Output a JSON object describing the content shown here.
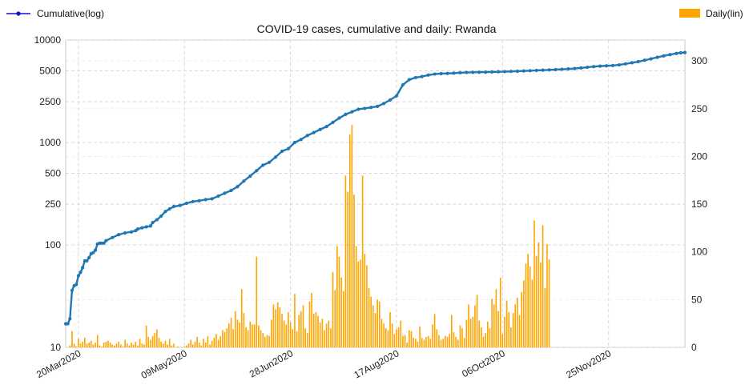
{
  "chart_data": {
    "type": "bar+line",
    "title": "COVID-19 cases, cumulative and daily: Rwanda",
    "legend": {
      "left": "Cumulative(log)",
      "right": "Daily(lin)",
      "placement": "top corners"
    },
    "colors": {
      "cumulative": "#1f77b4",
      "daily": "#ffa500",
      "grid": "#d9d9d9"
    },
    "x_axis": {
      "type": "date",
      "range": [
        "2020-03-14",
        "2020-12-31"
      ],
      "ticks": [
        {
          "date": "2020-03-20",
          "label": "20Mar2020"
        },
        {
          "date": "2020-05-09",
          "label": "09May2020"
        },
        {
          "date": "2020-06-28",
          "label": "28Jun2020"
        },
        {
          "date": "2020-08-17",
          "label": "17Aug2020"
        },
        {
          "date": "2020-10-06",
          "label": "06Oct2020"
        },
        {
          "date": "2020-11-25",
          "label": "25Nov2020"
        }
      ]
    },
    "y_left": {
      "scale": "log",
      "range": [
        10,
        10000
      ],
      "ticks": [
        10,
        100,
        250,
        500,
        1000,
        2500,
        5000,
        10000
      ]
    },
    "y_right": {
      "scale": "linear",
      "range": [
        0,
        322
      ],
      "ticks": [
        0,
        50,
        100,
        150,
        200,
        250,
        300
      ]
    },
    "grid": true,
    "series": [
      {
        "name": "Cumulative(log)",
        "axis": "left",
        "style": "line-with-dots",
        "points": [
          [
            "2020-03-14",
            17
          ],
          [
            "2020-03-15",
            17
          ],
          [
            "2020-03-16",
            19
          ],
          [
            "2020-03-17",
            36
          ],
          [
            "2020-03-18",
            40
          ],
          [
            "2020-03-19",
            41
          ],
          [
            "2020-03-20",
            50
          ],
          [
            "2020-03-21",
            54
          ],
          [
            "2020-03-22",
            60
          ],
          [
            "2020-03-23",
            70
          ],
          [
            "2020-03-24",
            70
          ],
          [
            "2020-03-25",
            75
          ],
          [
            "2020-03-26",
            82
          ],
          [
            "2020-03-27",
            84
          ],
          [
            "2020-03-28",
            89
          ],
          [
            "2020-03-29",
            102
          ],
          [
            "2020-03-30",
            104
          ],
          [
            "2020-03-31",
            104
          ],
          [
            "2020-04-01",
            104
          ],
          [
            "2020-04-02",
            110
          ],
          [
            "2020-04-05",
            118
          ],
          [
            "2020-04-08",
            126
          ],
          [
            "2020-04-11",
            131
          ],
          [
            "2020-04-14",
            134
          ],
          [
            "2020-04-16",
            138
          ],
          [
            "2020-04-17",
            143
          ],
          [
            "2020-04-19",
            147
          ],
          [
            "2020-04-21",
            150
          ],
          [
            "2020-04-23",
            153
          ],
          [
            "2020-04-24",
            165
          ],
          [
            "2020-04-26",
            176
          ],
          [
            "2020-04-28",
            191
          ],
          [
            "2020-04-30",
            212
          ],
          [
            "2020-05-02",
            225
          ],
          [
            "2020-05-04",
            237
          ],
          [
            "2020-05-07",
            243
          ],
          [
            "2020-05-10",
            255
          ],
          [
            "2020-05-13",
            265
          ],
          [
            "2020-05-16",
            270
          ],
          [
            "2020-05-19",
            277
          ],
          [
            "2020-05-22",
            282
          ],
          [
            "2020-05-25",
            300
          ],
          [
            "2020-05-28",
            320
          ],
          [
            "2020-05-31",
            340
          ],
          [
            "2020-06-03",
            370
          ],
          [
            "2020-06-06",
            420
          ],
          [
            "2020-06-09",
            470
          ],
          [
            "2020-06-12",
            530
          ],
          [
            "2020-06-15",
            600
          ],
          [
            "2020-06-18",
            640
          ],
          [
            "2020-06-21",
            720
          ],
          [
            "2020-06-24",
            820
          ],
          [
            "2020-06-27",
            870
          ],
          [
            "2020-06-30",
            1000
          ],
          [
            "2020-07-03",
            1070
          ],
          [
            "2020-07-06",
            1170
          ],
          [
            "2020-07-09",
            1250
          ],
          [
            "2020-07-12",
            1340
          ],
          [
            "2020-07-15",
            1430
          ],
          [
            "2020-07-18",
            1570
          ],
          [
            "2020-07-21",
            1730
          ],
          [
            "2020-07-24",
            1880
          ],
          [
            "2020-07-27",
            1990
          ],
          [
            "2020-07-30",
            2110
          ],
          [
            "2020-08-02",
            2150
          ],
          [
            "2020-08-05",
            2200
          ],
          [
            "2020-08-08",
            2250
          ],
          [
            "2020-08-11",
            2400
          ],
          [
            "2020-08-14",
            2600
          ],
          [
            "2020-08-17",
            2850
          ],
          [
            "2020-08-20",
            3650
          ],
          [
            "2020-08-23",
            4100
          ],
          [
            "2020-08-26",
            4300
          ],
          [
            "2020-08-29",
            4400
          ],
          [
            "2020-09-01",
            4550
          ],
          [
            "2020-09-04",
            4650
          ],
          [
            "2020-09-07",
            4700
          ],
          [
            "2020-09-10",
            4720
          ],
          [
            "2020-09-13",
            4750
          ],
          [
            "2020-09-16",
            4800
          ],
          [
            "2020-09-19",
            4820
          ],
          [
            "2020-09-22",
            4840
          ],
          [
            "2020-09-25",
            4850
          ],
          [
            "2020-09-28",
            4860
          ],
          [
            "2020-10-01",
            4880
          ],
          [
            "2020-10-04",
            4900
          ],
          [
            "2020-10-07",
            4920
          ],
          [
            "2020-10-10",
            4940
          ],
          [
            "2020-10-13",
            4960
          ],
          [
            "2020-10-16",
            4990
          ],
          [
            "2020-10-19",
            5020
          ],
          [
            "2020-10-22",
            5050
          ],
          [
            "2020-10-25",
            5080
          ],
          [
            "2020-10-28",
            5110
          ],
          [
            "2020-10-31",
            5140
          ],
          [
            "2020-11-03",
            5180
          ],
          [
            "2020-11-06",
            5220
          ],
          [
            "2020-11-09",
            5270
          ],
          [
            "2020-11-12",
            5340
          ],
          [
            "2020-11-15",
            5420
          ],
          [
            "2020-11-18",
            5500
          ],
          [
            "2020-11-21",
            5560
          ],
          [
            "2020-11-24",
            5600
          ],
          [
            "2020-11-27",
            5640
          ],
          [
            "2020-11-30",
            5720
          ],
          [
            "2020-12-03",
            5850
          ],
          [
            "2020-12-06",
            6000
          ],
          [
            "2020-12-09",
            6150
          ],
          [
            "2020-12-12",
            6350
          ],
          [
            "2020-12-15",
            6550
          ],
          [
            "2020-12-18",
            6780
          ],
          [
            "2020-12-21",
            7000
          ],
          [
            "2020-12-24",
            7200
          ],
          [
            "2020-12-27",
            7400
          ],
          [
            "2020-12-29",
            7500
          ],
          [
            "2020-12-31",
            7550
          ]
        ]
      },
      {
        "name": "Daily(lin)",
        "axis": "right",
        "style": "bar",
        "start_date": "2020-03-14",
        "values": [
          0,
          0,
          2,
          17,
          4,
          1,
          9,
          4,
          6,
          10,
          4,
          5,
          7,
          3,
          5,
          13,
          2,
          1,
          5,
          6,
          7,
          5,
          3,
          2,
          4,
          6,
          3,
          1,
          8,
          4,
          2,
          5,
          3,
          6,
          2,
          9,
          4,
          3,
          23,
          11,
          8,
          12,
          15,
          19,
          10,
          6,
          4,
          7,
          3,
          9,
          2,
          4,
          0,
          1,
          0,
          0,
          1,
          2,
          4,
          8,
          3,
          6,
          11,
          5,
          2,
          9,
          5,
          12,
          3,
          7,
          10,
          14,
          8,
          12,
          18,
          16,
          20,
          25,
          31,
          19,
          38,
          29,
          26,
          61,
          36,
          21,
          18,
          27,
          24,
          24,
          95,
          23,
          18,
          15,
          11,
          13,
          12,
          29,
          45,
          40,
          47,
          42,
          35,
          28,
          24,
          37,
          26,
          19,
          56,
          17,
          34,
          38,
          44,
          20,
          15,
          48,
          57,
          35,
          37,
          33,
          26,
          30,
          18,
          25,
          28,
          20,
          79,
          60,
          106,
          95,
          73,
          59,
          180,
          163,
          223,
          233,
          160,
          106,
          90,
          92,
          180,
          98,
          86,
          62,
          53,
          44,
          36,
          50,
          48,
          30,
          25,
          20,
          18,
          37,
          25,
          14,
          19,
          21,
          28,
          12,
          13,
          5,
          18,
          17,
          10,
          9,
          6,
          22,
          10,
          8,
          11,
          12,
          9,
          24,
          35,
          19,
          13,
          8,
          9,
          12,
          11,
          14,
          34,
          16,
          11,
          8,
          23,
          20,
          10,
          29,
          45,
          30,
          32,
          44,
          55,
          28,
          21,
          11,
          15,
          27,
          20,
          51,
          45,
          61,
          38,
          73,
          14,
          32,
          49,
          37,
          21,
          36,
          45,
          52,
          34,
          58,
          70,
          88,
          98,
          85,
          71,
          133,
          96,
          110,
          89,
          128,
          62,
          108,
          92
        ]
      }
    ]
  }
}
